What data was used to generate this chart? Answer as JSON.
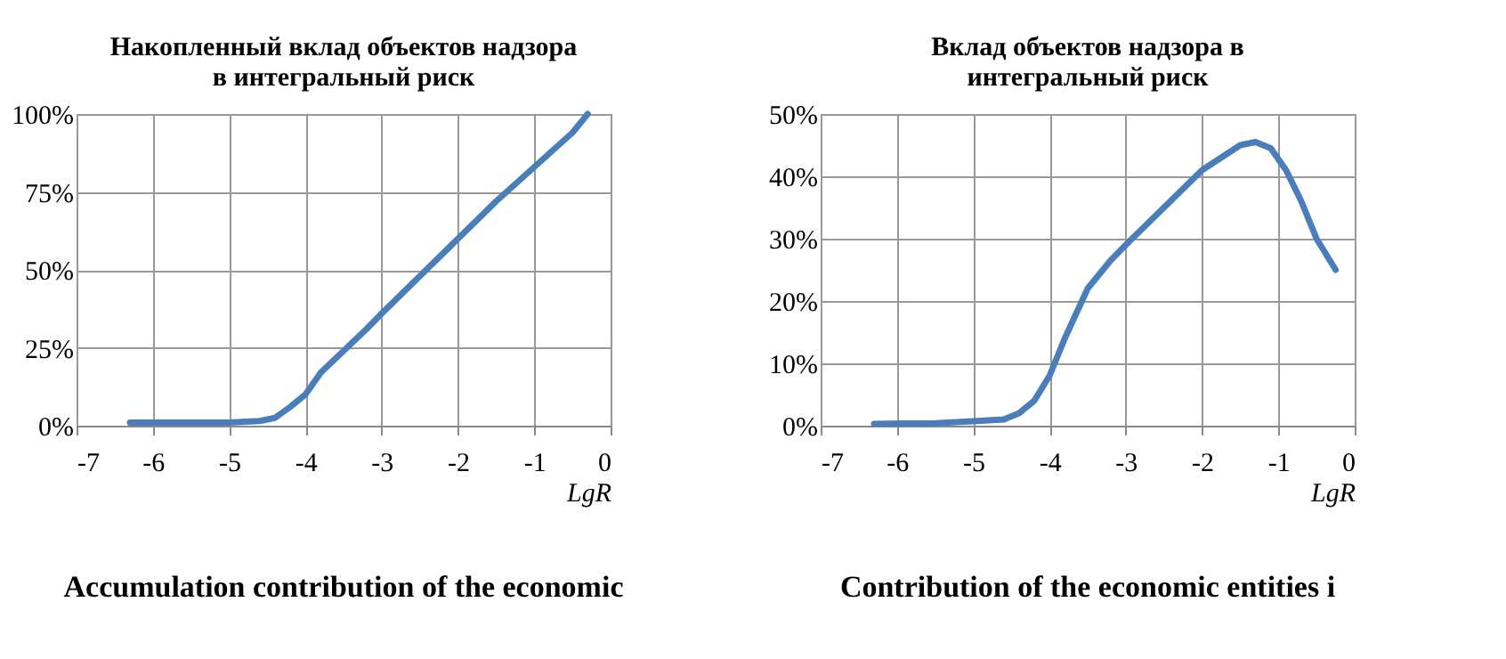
{
  "chart_data": [
    {
      "type": "line",
      "title": [
        "Накопленный вклад объектов надзора",
        "в интегральный риск"
      ],
      "xlabel": "LgR",
      "series": [
        {
          "color": "#4a7ebb",
          "x": [
            -6.3,
            -5.5,
            -5,
            -4.6,
            -4.4,
            -4.2,
            -4,
            -3.8,
            -3.5,
            -3.2,
            -3,
            -2.5,
            -2,
            -1.5,
            -1,
            -0.5,
            -0.3
          ],
          "values": [
            1,
            1,
            1,
            1.5,
            2.5,
            6,
            10,
            17,
            24,
            31,
            36,
            48,
            60,
            72,
            83,
            94,
            100
          ]
        }
      ],
      "xlim": [
        -7,
        0
      ],
      "xticks": [
        -7,
        -6,
        -5,
        -4,
        -3,
        -2,
        -1,
        0
      ],
      "ylim": [
        0,
        100
      ],
      "yticks": [
        {
          "value": 0,
          "label": "0%"
        },
        {
          "value": 25,
          "label": "25%"
        },
        {
          "value": 50,
          "label": "50%"
        },
        {
          "value": 75,
          "label": "75%"
        },
        {
          "value": 100,
          "label": "100%"
        }
      ],
      "grid": true,
      "annotations": [
        "Accumulation contribution of the economic"
      ]
    },
    {
      "type": "line",
      "title": [
        "Вклад объектов надзора в",
        "интегральный риск"
      ],
      "xlabel": "LgR",
      "series": [
        {
          "color": "#4a7ebb",
          "x": [
            -6.3,
            -5.5,
            -5,
            -4.6,
            -4.4,
            -4.2,
            -4,
            -3.8,
            -3.5,
            -3.2,
            -3,
            -2.5,
            -2,
            -1.5,
            -1.3,
            -1.1,
            -0.9,
            -0.7,
            -0.5,
            -0.25
          ],
          "values": [
            0.3,
            0.4,
            0.7,
            1,
            2,
            4,
            8,
            14,
            22,
            26.5,
            29,
            35,
            41,
            45,
            45.5,
            44.5,
            41,
            36,
            30,
            25
          ]
        }
      ],
      "xlim": [
        -7,
        0
      ],
      "xticks": [
        -7,
        -6,
        -5,
        -4,
        -3,
        -2,
        -1,
        0
      ],
      "ylim": [
        0,
        50
      ],
      "yticks": [
        {
          "value": 0,
          "label": "0%"
        },
        {
          "value": 10,
          "label": "10%"
        },
        {
          "value": 20,
          "label": "20%"
        },
        {
          "value": 30,
          "label": "30%"
        },
        {
          "value": 40,
          "label": "40%"
        },
        {
          "value": 50,
          "label": "50%"
        }
      ],
      "grid": true,
      "annotations": [
        "Contribution of the economic entities i"
      ]
    }
  ]
}
